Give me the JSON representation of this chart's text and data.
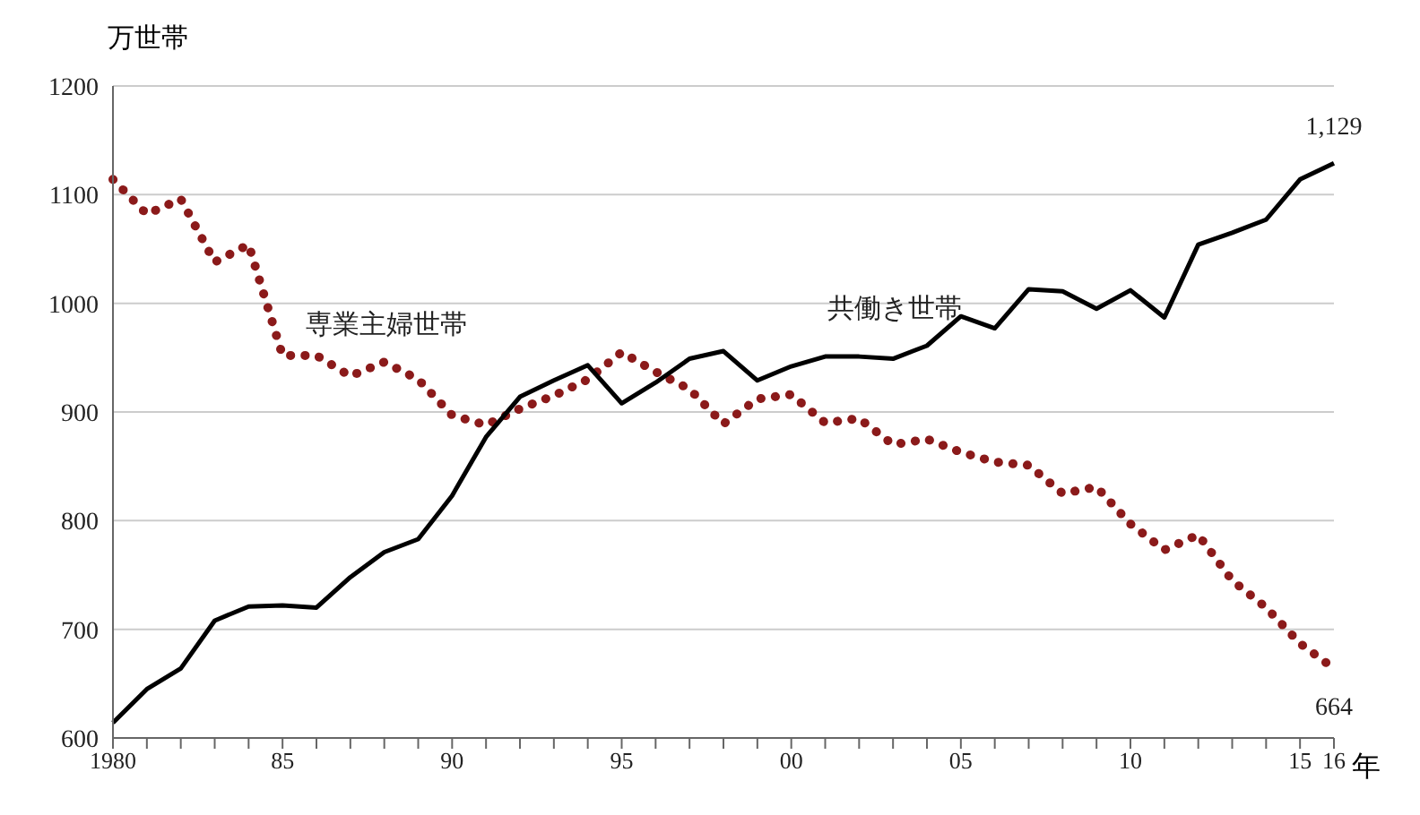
{
  "chart_data": {
    "type": "line",
    "ylabel": "万世帯",
    "xlabel": "年",
    "categories": [
      "1980",
      null,
      null,
      null,
      null,
      "85",
      null,
      null,
      null,
      null,
      "90",
      null,
      null,
      null,
      null,
      "95",
      null,
      null,
      null,
      null,
      "00",
      null,
      null,
      null,
      null,
      "05",
      null,
      null,
      null,
      null,
      "10",
      null,
      null,
      null,
      null,
      "15",
      "16"
    ],
    "series": [
      {
        "name": "専業主婦世帯",
        "color": "#8b1a1a",
        "line_style": "dotted",
        "values": [
          1114,
          1082,
          1096,
          1038,
          1054,
          952,
          952,
          933,
          946,
          930,
          897,
          888,
          903,
          915,
          930,
          955,
          937,
          921,
          889,
          912,
          916,
          890,
          894,
          870,
          875,
          863,
          854,
          851,
          825,
          831,
          797,
          773,
          787,
          745,
          720,
          687,
          664
        ],
        "value_labels": [
          null,
          null,
          null,
          null,
          null,
          null,
          null,
          null,
          null,
          null,
          null,
          null,
          null,
          null,
          null,
          null,
          null,
          null,
          null,
          null,
          null,
          null,
          null,
          null,
          null,
          null,
          null,
          null,
          null,
          null,
          null,
          null,
          null,
          null,
          null,
          null,
          "664"
        ]
      },
      {
        "name": "共働き世帯",
        "color": "#000000",
        "line_style": "solid",
        "values": [
          614,
          645,
          664,
          708,
          721,
          722,
          720,
          748,
          771,
          783,
          823,
          877,
          914,
          929,
          943,
          908,
          927,
          949,
          956,
          929,
          942,
          951,
          951,
          949,
          961,
          988,
          977,
          1013,
          1011,
          995,
          1012,
          987,
          1054,
          1065,
          1077,
          1114,
          1129
        ],
        "value_labels": [
          null,
          null,
          null,
          null,
          null,
          null,
          null,
          null,
          null,
          null,
          null,
          null,
          null,
          null,
          null,
          null,
          null,
          null,
          null,
          null,
          null,
          null,
          null,
          null,
          null,
          null,
          null,
          null,
          null,
          null,
          null,
          null,
          null,
          null,
          null,
          null,
          "1,129"
        ]
      }
    ],
    "ylim": [
      600,
      1200
    ],
    "yticks": [
      600,
      700,
      800,
      900,
      1000,
      1100,
      1200
    ],
    "grid": "y",
    "marker": "none"
  }
}
